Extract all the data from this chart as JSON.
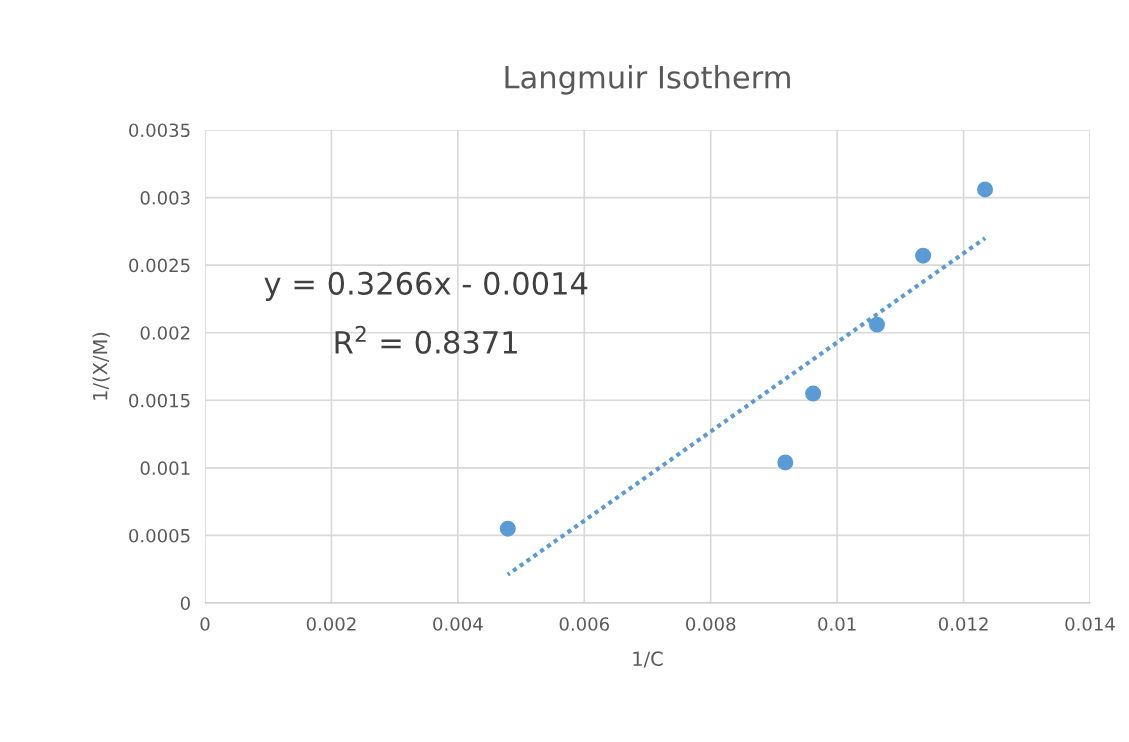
{
  "chart_data": {
    "type": "scatter",
    "title": "Langmuir Isotherm",
    "xlabel": "1/C",
    "ylabel": "1/(X/M)",
    "series": [
      {
        "color": "#5b9bd5",
        "marker": "circle",
        "x": [
          0.00479,
          0.00918,
          0.00962,
          0.01063,
          0.01136,
          0.01234
        ],
        "values": [
          0.00055,
          0.00104,
          0.00155,
          0.00206,
          0.00257,
          0.00306
        ]
      },
      {
        "type": "line",
        "color": "#5b9bd5",
        "line_style": "dotted",
        "marker": "none",
        "x": [
          0.00479,
          0.01234
        ],
        "values": [
          0.00021,
          0.0027
        ]
      }
    ],
    "annotations": [
      "y = 0.3266x - 0.0014",
      "R$^{2}$ = 0.8371"
    ],
    "xlim": [
      0,
      0.014
    ],
    "xticks": [
      0,
      0.002,
      0.004,
      0.006,
      0.008,
      0.01,
      0.012,
      0.014
    ],
    "ylim": [
      0,
      0.0035
    ],
    "yticks": [
      0,
      0.0005,
      0.001,
      0.0015,
      0.002,
      0.0025,
      0.003,
      0.0035
    ],
    "grid": true,
    "legend": false
  }
}
